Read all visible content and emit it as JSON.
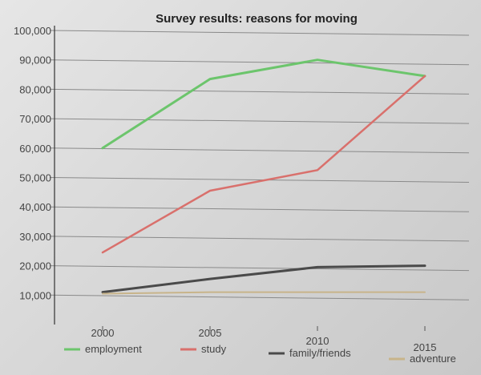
{
  "chart_data": {
    "type": "line",
    "title": "Survey results: reasons for moving",
    "xlabel": "",
    "ylabel": "",
    "x": [
      "2000",
      "2005",
      "2010",
      "2015"
    ],
    "ylim": [
      0,
      100000
    ],
    "yticks": [
      "10,000",
      "20,000",
      "30,000",
      "40,000",
      "50,000",
      "60,000",
      "70,000",
      "80,000",
      "90,000",
      "100,000"
    ],
    "grid": true,
    "legend_position": "bottom",
    "series": [
      {
        "name": "employment",
        "values": [
          60000,
          83500,
          90000,
          84500
        ],
        "color": "#6cc56c"
      },
      {
        "name": "study",
        "values": [
          24500,
          45500,
          52500,
          84500
        ],
        "color": "#d9706c"
      },
      {
        "name": "family/friends",
        "values": [
          11000,
          15500,
          19500,
          20000
        ],
        "color": "#4a4a4a"
      },
      {
        "name": "adventure",
        "values": [
          10500,
          11000,
          11000,
          11000
        ],
        "color": "#c8b48a"
      }
    ]
  }
}
